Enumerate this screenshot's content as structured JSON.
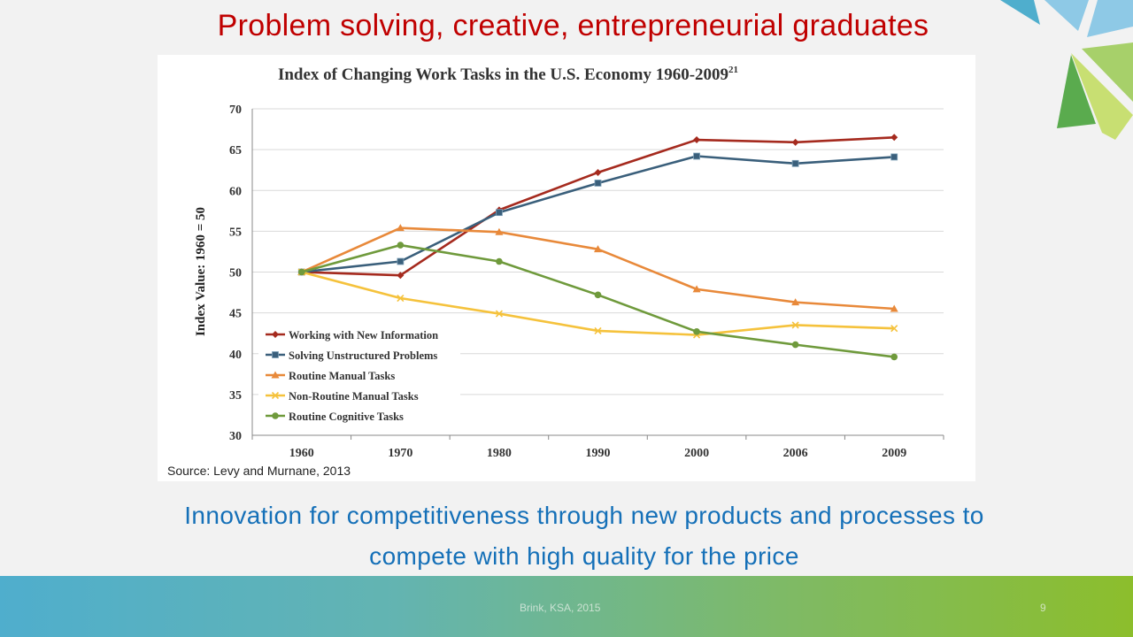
{
  "slide": {
    "title": "Problem solving, creative, entrepreneurial graduates",
    "source": "Source: Levy and Murnane, 2013",
    "subtitle_line1": "Innovation for competitiveness through new products and processes to",
    "subtitle_line2": "compete with high quality for the price",
    "footer": "Brink, KSA, 2015",
    "page_number": "9"
  },
  "colors": {
    "title": "#c00000",
    "subtitle": "#1570b8",
    "working_new_info": "#a52a1e",
    "solving_unstructured": "#3a5f7b",
    "routine_manual": "#e8893a",
    "non_routine_manual": "#f5c23c",
    "routine_cognitive": "#6f9a3c"
  },
  "chart_data": {
    "type": "line",
    "title": "Index of Changing Work Tasks in the U.S. Economy 1960-2009",
    "title_superscript": "21",
    "xlabel": "",
    "ylabel": "Index Value: 1960 = 50",
    "categories": [
      "1960",
      "1970",
      "1980",
      "1990",
      "2000",
      "2006",
      "2009"
    ],
    "ylim": [
      30,
      70
    ],
    "yticks": [
      "30",
      "35",
      "40",
      "45",
      "50",
      "55",
      "60",
      "65",
      "70"
    ],
    "grid": true,
    "legend_position": "bottom-left",
    "series": [
      {
        "name": "Working with New Information",
        "marker": "diamond",
        "color": "#a52a1e",
        "values": [
          50,
          49.6,
          57.6,
          62.2,
          66.2,
          65.9,
          66.5
        ]
      },
      {
        "name": "Solving Unstructured Problems",
        "marker": "square",
        "color": "#3a5f7b",
        "values": [
          50,
          51.3,
          57.3,
          60.9,
          64.2,
          63.3,
          64.1
        ]
      },
      {
        "name": "Routine Manual Tasks",
        "marker": "triangle",
        "color": "#e8893a",
        "values": [
          50,
          55.4,
          54.9,
          52.8,
          47.9,
          46.3,
          45.5
        ]
      },
      {
        "name": "Non-Routine Manual Tasks",
        "marker": "x",
        "color": "#f5c23c",
        "values": [
          50,
          46.8,
          44.9,
          42.8,
          42.3,
          43.5,
          43.1
        ]
      },
      {
        "name": "Routine Cognitive Tasks",
        "marker": "circle",
        "color": "#6f9a3c",
        "values": [
          50,
          53.3,
          51.3,
          47.2,
          42.7,
          41.1,
          39.6
        ]
      }
    ]
  }
}
